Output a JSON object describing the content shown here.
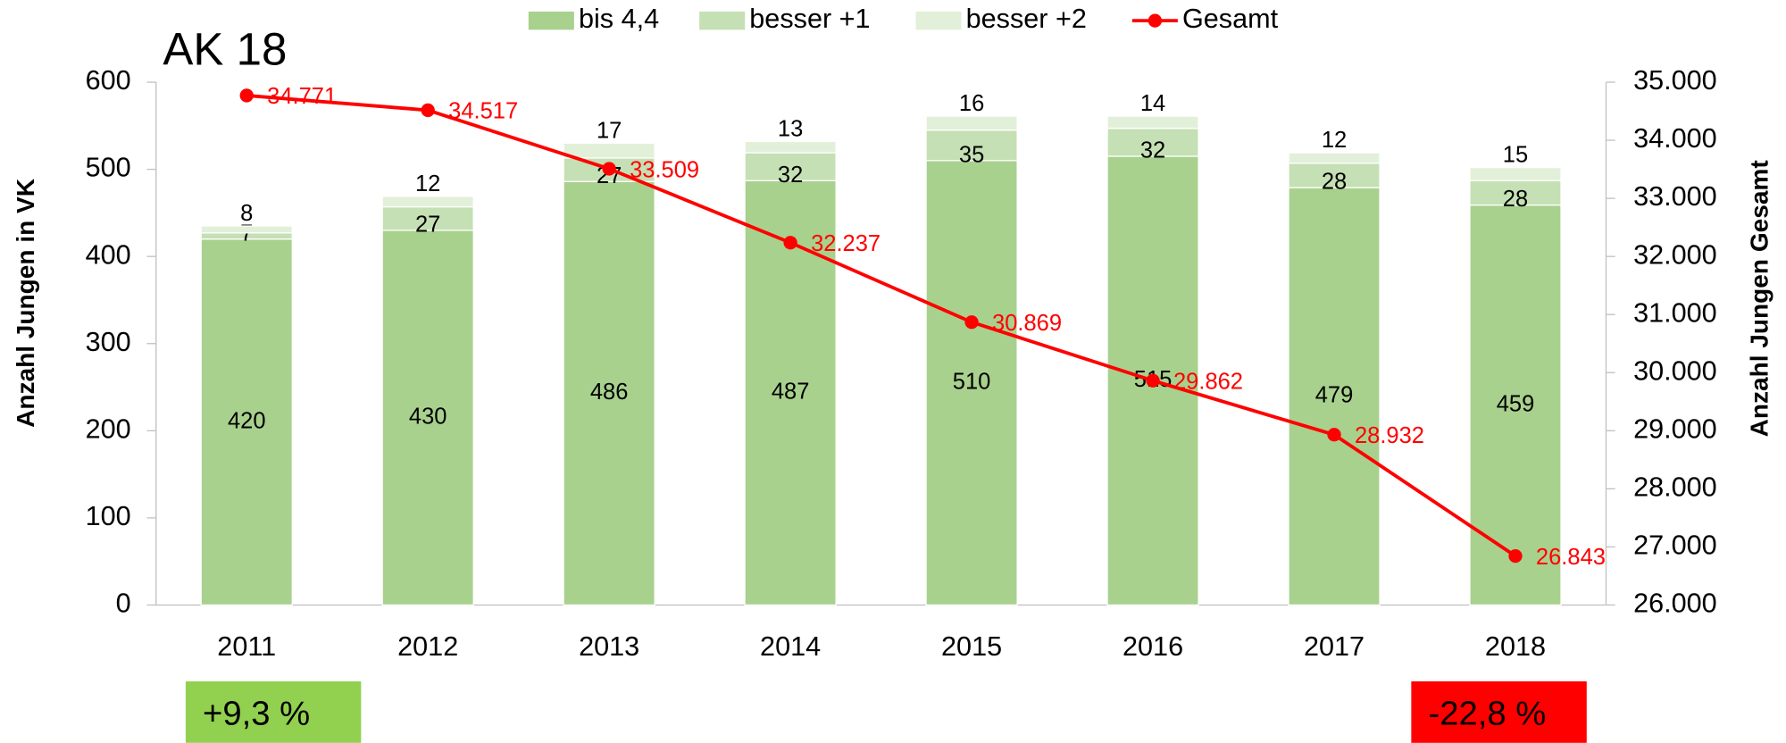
{
  "chart_data": {
    "type": "bar",
    "stacked": true,
    "title": "AK 18",
    "ylabel": "Anzahl Jungen in VK",
    "y2label": "Anzahl Jungen Gesamt",
    "categories": [
      "2011",
      "2012",
      "2013",
      "2014",
      "2015",
      "2016",
      "2017",
      "2018"
    ],
    "series": [
      {
        "name": "bis 4,4",
        "color": "#a9d18e",
        "values": [
          420,
          430,
          486,
          487,
          510,
          515,
          479,
          459
        ]
      },
      {
        "name": "besser +1",
        "color": "#c5e0b4",
        "values": [
          7,
          27,
          27,
          32,
          35,
          32,
          28,
          28
        ]
      },
      {
        "name": "besser +2",
        "color": "#e2f0d9",
        "values": [
          8,
          12,
          17,
          13,
          16,
          14,
          12,
          15
        ]
      },
      {
        "name": "Gesamt",
        "type": "line",
        "axis": "y2",
        "color": "#ff0000",
        "values": [
          34771,
          34517,
          33509,
          32237,
          30869,
          29862,
          28932,
          26843
        ],
        "value_labels": [
          "34.771",
          "34.517",
          "33.509",
          "32.237",
          "30.869",
          "29.862",
          "28.932",
          "26.843"
        ]
      }
    ],
    "ylim": [
      0,
      600
    ],
    "yticks": [
      0,
      100,
      200,
      300,
      400,
      500,
      600
    ],
    "y2lim": [
      26000,
      35000
    ],
    "y2ticks": [
      {
        "value": 26000,
        "label": "26.000"
      },
      {
        "value": 27000,
        "label": "27.000"
      },
      {
        "value": 28000,
        "label": "28.000"
      },
      {
        "value": 29000,
        "label": "29.000"
      },
      {
        "value": 30000,
        "label": "30.000"
      },
      {
        "value": 31000,
        "label": "31.000"
      },
      {
        "value": 32000,
        "label": "32.000"
      },
      {
        "value": 33000,
        "label": "33.000"
      },
      {
        "value": 34000,
        "label": "34.000"
      },
      {
        "value": 35000,
        "label": "35.000"
      }
    ],
    "legend": "top",
    "annotations": [
      {
        "text": "+9,3 %",
        "color": "#92d050"
      },
      {
        "text": "-22,8 %",
        "color": "#ff0000"
      }
    ]
  }
}
